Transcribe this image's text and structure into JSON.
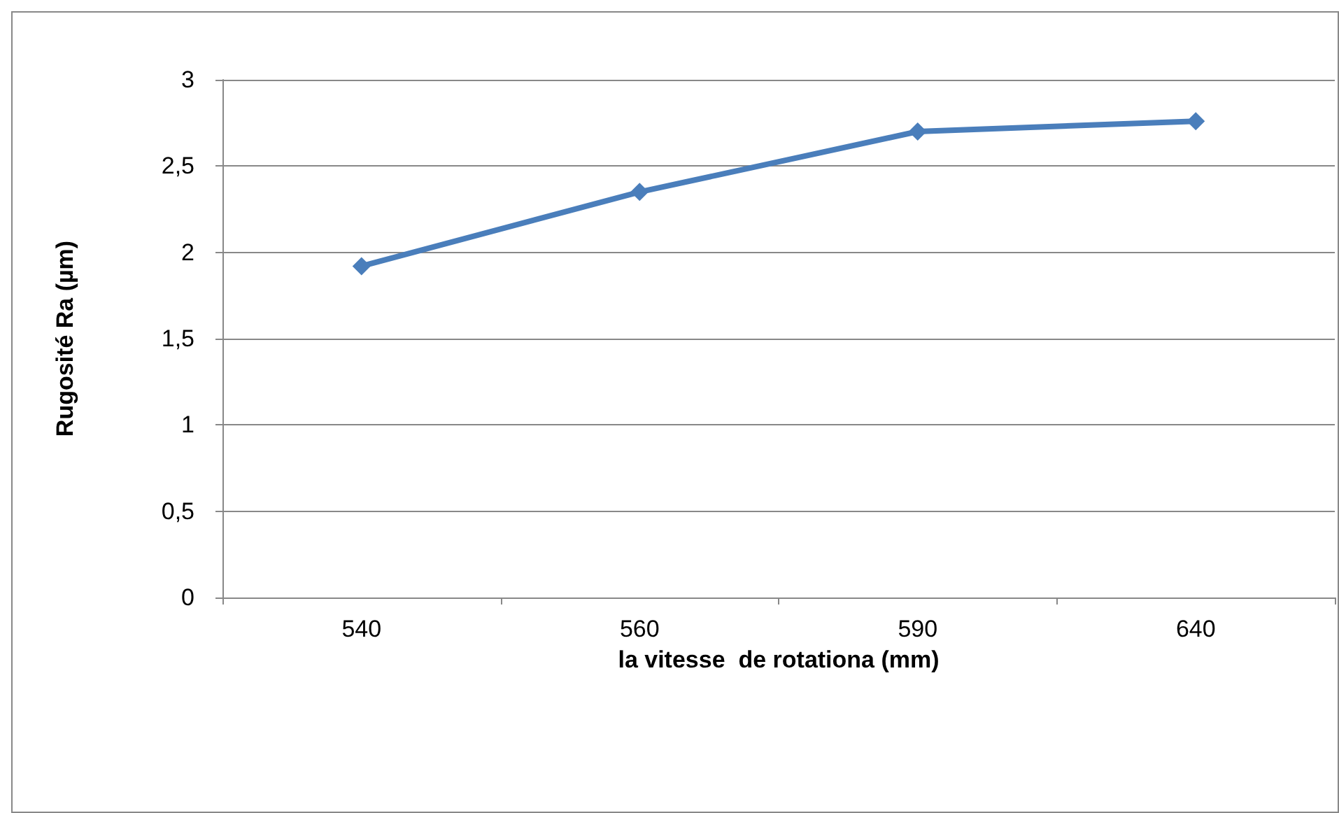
{
  "chart_data": {
    "type": "line",
    "xlabel": "la vitesse  de rotationa (mm)",
    "ylabel": "Rugosité Ra (µm)",
    "categories": [
      "540",
      "560",
      "590",
      "640"
    ],
    "series": [
      {
        "color": "#4a7ebb",
        "values": [
          1.92,
          2.35,
          2.7,
          2.76
        ]
      }
    ],
    "ylim": [
      0,
      3
    ],
    "yticks": [
      0,
      {
        "value": 0.5,
        "label": "0,5"
      },
      1,
      {
        "value": 1.5,
        "label": "1,5"
      },
      2,
      {
        "value": 2.5,
        "label": "2,5"
      },
      3
    ],
    "grid": "y",
    "marker": "diamond",
    "line_style": "solid"
  }
}
